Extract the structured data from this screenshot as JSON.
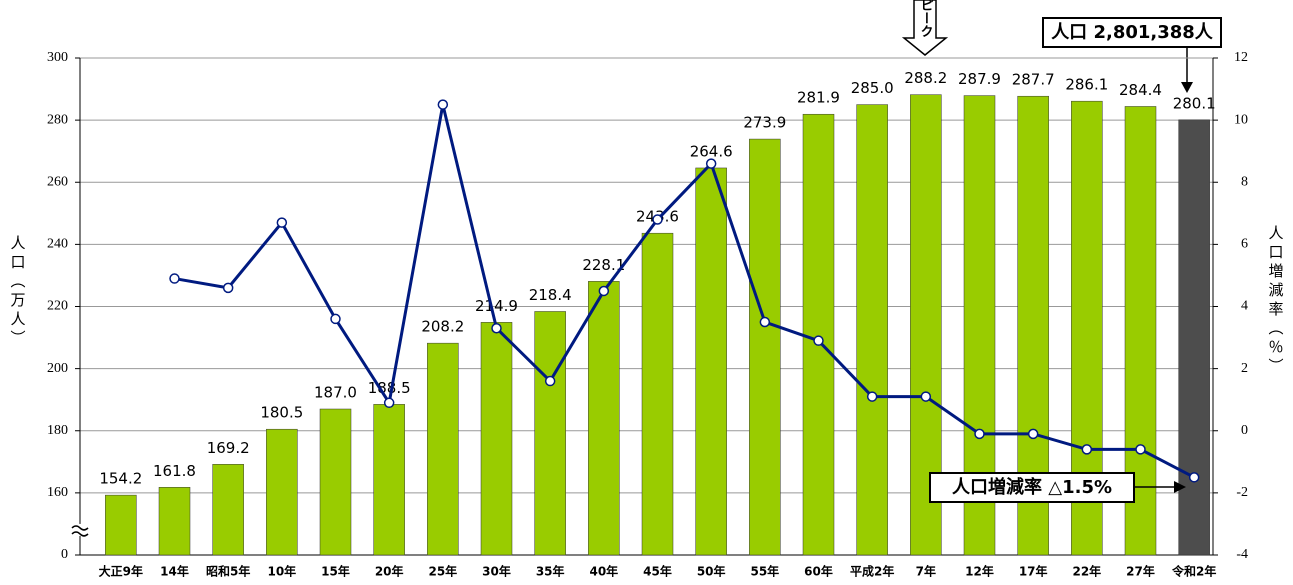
{
  "chart_data": {
    "type": "bar_line",
    "y_label": "人口（万人）",
    "y2_label": "人口増減率（％）",
    "categories": [
      "大正9年",
      "14年",
      "昭和5年",
      "10年",
      "15年",
      "20年",
      "25年",
      "30年",
      "35年",
      "40年",
      "45年",
      "50年",
      "55年",
      "60年",
      "平成2年",
      "7年",
      "12年",
      "17年",
      "22年",
      "27年",
      "令和2年"
    ],
    "series": [
      {
        "type": "bar",
        "colors": [
          "#99cc00",
          "#99cc00",
          "#99cc00",
          "#99cc00",
          "#99cc00",
          "#99cc00",
          "#99cc00",
          "#99cc00",
          "#99cc00",
          "#99cc00",
          "#99cc00",
          "#99cc00",
          "#99cc00",
          "#99cc00",
          "#99cc00",
          "#99cc00",
          "#99cc00",
          "#99cc00",
          "#99cc00",
          "#99cc00",
          "#4d4d4d"
        ],
        "values": [
          154.2,
          161.8,
          169.2,
          180.5,
          187.0,
          188.5,
          208.2,
          214.9,
          218.4,
          228.1,
          243.6,
          264.6,
          273.9,
          281.9,
          285.0,
          288.2,
          287.9,
          287.7,
          286.1,
          284.4,
          280.1
        ],
        "value_labels": [
          "154.2",
          "161.8",
          "169.2",
          "180.5",
          "187.0",
          "188.5",
          "208.2",
          "214.9",
          "218.4",
          "228.1",
          "243.6",
          "264.6",
          "273.9",
          "281.9",
          "285.0",
          "288.2",
          "287.9",
          "287.7",
          "286.1",
          "284.4",
          "280.1"
        ]
      },
      {
        "type": "line",
        "axis": "y2",
        "color": "#001a80",
        "values": [
          null,
          4.9,
          4.6,
          6.7,
          3.6,
          0.9,
          10.5,
          3.3,
          1.6,
          4.5,
          6.8,
          8.6,
          3.5,
          2.9,
          1.1,
          1.1,
          -0.1,
          -0.1,
          -0.6,
          -0.6,
          -1.5
        ]
      }
    ],
    "ylim": [
      0,
      300
    ],
    "yticks": [
      0,
      160,
      180,
      200,
      220,
      240,
      260,
      280,
      300
    ],
    "axis_break": true,
    "y2lim": [
      -4,
      12
    ],
    "y2ticks": [
      -4,
      -2,
      0,
      2,
      4,
      6,
      8,
      10,
      12
    ],
    "grid": true,
    "annotations": {
      "peak": "ピーク",
      "population": "人口 2,801,388人",
      "rate": "人口増減率 △1.5%"
    }
  }
}
